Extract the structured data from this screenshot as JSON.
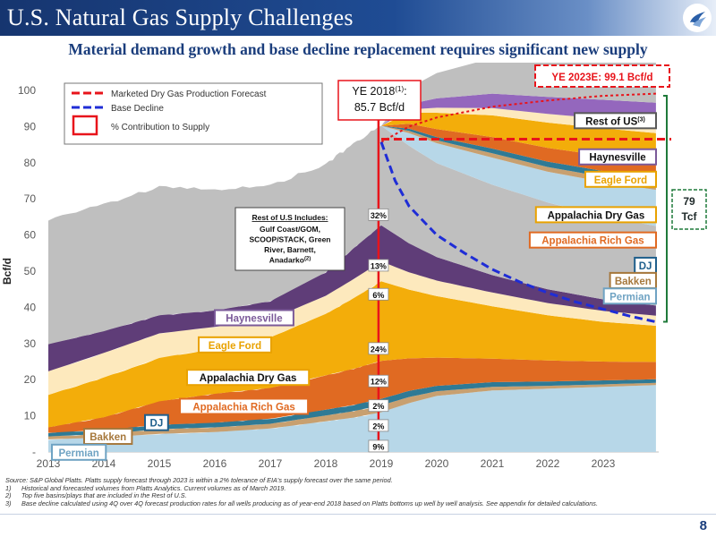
{
  "header": {
    "title": "U.S. Natural Gas Supply Challenges"
  },
  "subtitle": "Material demand growth and base decline replacement requires significant new supply",
  "page_number": "8",
  "footnotes": {
    "source": "Source: S&P Global Platts. Platts supply forecast through 2023 is within a 2% tolerance of EIA's supply forecast over the same period.",
    "items": [
      {
        "num": "1)",
        "text": "Historical and forecasted volumes from Platts Analytics. Current volumes as of March 2019."
      },
      {
        "num": "2)",
        "text": "Top five basins/plays that are included in the Rest of U.S."
      },
      {
        "num": "3)",
        "text": "Base decline calculated using 4Q over 4Q forecast production rates for all wells producing as of year-end 2018 based on Platts bottoms up well by well analysis.  See appendix for detailed calculations."
      }
    ]
  },
  "chart_data": {
    "type": "area",
    "ylabel": "Bcf/d",
    "ylim": [
      0,
      100
    ],
    "yticks": [
      "-",
      "10",
      "20",
      "30",
      "40",
      "50",
      "60",
      "70",
      "80",
      "90",
      "100"
    ],
    "xlim": [
      2013,
      2024
    ],
    "xticks": [
      "2013",
      "2014",
      "2015",
      "2016",
      "2017",
      "2018",
      "2019",
      "2020",
      "2021",
      "2022",
      "2023"
    ],
    "x": [
      2013.0,
      2014.0,
      2015.0,
      2016.0,
      2017.0,
      2018.0,
      2018.5,
      2019.0,
      2019.5,
      2020.0,
      2021.0,
      2022.0,
      2023.0,
      2023.95
    ],
    "series": [
      {
        "name": "Permian",
        "color": "#b7d7e8",
        "label_color": "#6fa3c3",
        "values": [
          3.5,
          4.0,
          5.0,
          5.5,
          6.5,
          8.5,
          9.5,
          11.0,
          13.5,
          15.5,
          17.0,
          17.5,
          18.0,
          18.5
        ]
      },
      {
        "name": "Bakken",
        "color": "#c8a070",
        "label_color": "#a6783c",
        "values": [
          0.8,
          1.0,
          1.3,
          1.3,
          1.3,
          1.6,
          1.8,
          1.9,
          1.7,
          1.3,
          1.0,
          0.8,
          0.7,
          0.6
        ]
      },
      {
        "name": "DJ",
        "color": "#2f7a95",
        "label_color": "#1f5f8c",
        "values": [
          1.0,
          1.1,
          1.2,
          1.3,
          1.4,
          1.6,
          1.7,
          1.8,
          1.7,
          1.5,
          1.3,
          1.2,
          1.1,
          1.0
        ]
      },
      {
        "name": "Appalachia Rich Gas",
        "color": "#e06a22",
        "label_color": "#e06a22",
        "values": [
          1.5,
          3.5,
          6.5,
          8.0,
          8.5,
          9.5,
          10.0,
          10.5,
          9.0,
          7.8,
          6.5,
          5.8,
          5.2,
          4.8
        ]
      },
      {
        "name": "Appalachia Dry Gas",
        "color": "#f3ad0a",
        "label_color": "#e9a200",
        "values": [
          9.0,
          11.0,
          12.0,
          12.5,
          14.0,
          17.0,
          19.5,
          22.0,
          19.0,
          17.0,
          14.5,
          12.5,
          11.0,
          10.0
        ]
      },
      {
        "name": "Eagle Ford",
        "color": "#fde9bd",
        "label_color": "#e9a200",
        "values": [
          6.5,
          6.8,
          6.8,
          6.0,
          5.0,
          5.0,
          5.3,
          5.5,
          4.8,
          4.3,
          3.8,
          3.4,
          3.0,
          2.8
        ]
      },
      {
        "name": "Haynesville",
        "color": "#5f3d78",
        "label_color": "#7b5a99",
        "values": [
          7.5,
          6.0,
          5.0,
          4.5,
          5.0,
          6.5,
          8.5,
          10.0,
          8.0,
          6.5,
          4.8,
          3.8,
          3.2,
          2.8
        ]
      },
      {
        "name": "Rest of US",
        "color": "#bfbfbf",
        "label_color": "#595959",
        "values": [
          34.5,
          35.0,
          35.5,
          33.5,
          32.0,
          30.0,
          29.0,
          27.5,
          27.0,
          26.0,
          25.0,
          24.0,
          23.0,
          22.0
        ]
      }
    ],
    "forecast_x": [
      2019.0,
      2019.5,
      2020.0,
      2021.0,
      2022.0,
      2023.0,
      2023.95
    ],
    "forecast_totals": [
      85.7,
      90.0,
      92.5,
      95.5,
      97.2,
      98.5,
      99.1
    ],
    "forecast_segments": [
      {
        "name": "Permian",
        "color": "#b7d7e8",
        "values": [
          0,
          3.5,
          5.5,
          7.5,
          8.5,
          9.5,
          10.0
        ]
      },
      {
        "name": "Bakken",
        "color": "#c8a070",
        "values": [
          0,
          0.6,
          0.8,
          1.2,
          1.3,
          1.4,
          1.5
        ]
      },
      {
        "name": "DJ",
        "color": "#2f7a95",
        "values": [
          0,
          0.6,
          0.9,
          1.3,
          1.5,
          1.6,
          1.7
        ]
      },
      {
        "name": "Appalachia Rich Gas",
        "color": "#e06a22",
        "values": [
          0,
          1.4,
          2.2,
          3.2,
          3.8,
          4.2,
          4.5
        ]
      },
      {
        "name": "Appalachia Dry Gas",
        "color": "#f3ad0a",
        "values": [
          0,
          3.0,
          4.5,
          6.0,
          7.0,
          7.6,
          8.0
        ]
      },
      {
        "name": "Eagle Ford",
        "color": "#fde9bd",
        "values": [
          0,
          0.9,
          1.4,
          2.0,
          2.4,
          2.7,
          2.9
        ]
      },
      {
        "name": "Haynesville",
        "color": "#9467bd",
        "values": [
          0,
          1.5,
          2.6,
          4.0,
          4.7,
          5.2,
          5.5
        ]
      },
      {
        "name": "Rest of US",
        "color": "#bfbfbf",
        "values": [
          0,
          4.5,
          7.0,
          9.8,
          11.6,
          12.9,
          13.5
        ]
      }
    ],
    "base_decline": {
      "name": "Base Decline",
      "color": "#1f2dd6",
      "x": [
        2019.0,
        2019.25,
        2019.5,
        2020.0,
        2020.5,
        2021.0,
        2021.5,
        2022.0,
        2022.5,
        2023.0,
        2023.5,
        2023.95
      ],
      "values": [
        85.7,
        75.0,
        68.0,
        60.0,
        55.0,
        50.5,
        47.0,
        44.0,
        41.5,
        39.5,
        37.5,
        36.0
      ]
    },
    "production_forecast": {
      "name": "Marketed Dry Gas Production Forecast",
      "color": "#e8141b",
      "value": 86.5
    },
    "ye2018_line": {
      "x": 2018.95,
      "color": "#e8141b"
    },
    "legend": [
      {
        "key": "forecast",
        "label": "Marketed Dry Gas Production Forecast"
      },
      {
        "key": "decline",
        "label": "Base Decline"
      },
      {
        "key": "contribution",
        "label": "% Contribution to Supply"
      }
    ],
    "percent_labels": [
      {
        "text": "32%",
        "y": 65.5
      },
      {
        "text": "13%",
        "y": 51.5
      },
      {
        "text": "6%",
        "y": 43.5
      },
      {
        "text": "24%",
        "y": 28.5
      },
      {
        "text": "12%",
        "y": 19.5
      },
      {
        "text": "2%",
        "y": 12.7
      },
      {
        "text": "2%",
        "y": 7.2
      },
      {
        "text": "9%",
        "y": 1.5
      }
    ],
    "ye2018_callout": {
      "line1": "YE 2018",
      "sup": "(1)",
      "line1_end": ":",
      "line2": "85.7 Bcf/d"
    },
    "ye2023_callout": "YE 2023E: 99.1 Bcf/d",
    "tcf_callout": {
      "value": "79",
      "unit": "Tcf"
    },
    "rest_of_us_note": {
      "title": "Rest of U.S Includes:",
      "lines": [
        "Gulf Coast/GOM,",
        "SCOOP/STACK, Green",
        "River, Barnett,"
      ],
      "last": "Anadarko",
      "sup": "(2)"
    },
    "right_labels": [
      {
        "text": "Rest of US",
        "sup": "(3)",
        "y": 91.5
      },
      {
        "text": "Haynesville",
        "y": 81.5
      },
      {
        "text": "Eagle Ford",
        "y": 75.3
      },
      {
        "text": "Appalachia Dry Gas",
        "y": 65.5
      },
      {
        "text": "Appalachia Rich Gas",
        "y": 58.5
      },
      {
        "text": "DJ",
        "y": 51.5
      },
      {
        "text": "Bakken",
        "y": 47.3
      },
      {
        "text": "Permian",
        "y": 43.0
      }
    ],
    "left_labels": [
      {
        "text": "Haynesville",
        "y": 37.0
      },
      {
        "text": "Eagle Ford",
        "y": 29.5
      },
      {
        "text": "Appalachia Dry Gas",
        "y": 20.5
      },
      {
        "text": "Appalachia Rich Gas",
        "y": 12.5
      },
      {
        "text": "DJ",
        "y": 8.0
      },
      {
        "text": "Bakken",
        "y": 4.2
      },
      {
        "text": "Permian",
        "y": -0.2
      }
    ]
  }
}
